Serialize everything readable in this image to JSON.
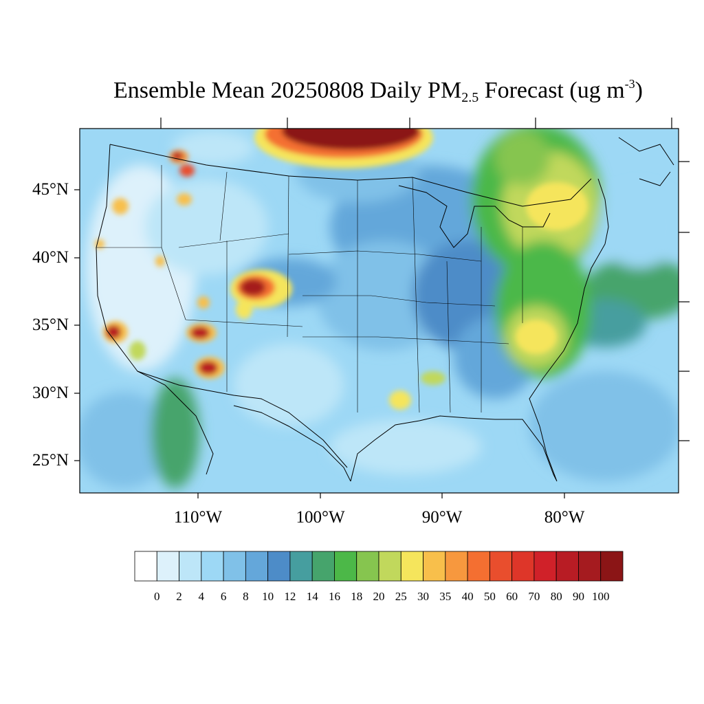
{
  "title": {
    "prefix": "Ensemble Mean 20250808 Daily PM",
    "subscript": "2.5",
    "middle": " Forecast (ug m",
    "superscript": "-3",
    "suffix": ")"
  },
  "map": {
    "projection": "lambert-conformal",
    "region": "Contiguous United States",
    "lat_labels": [
      "45°N",
      "40°N",
      "35°N",
      "30°N",
      "25°N"
    ],
    "lon_labels": [
      "110°W",
      "100°W",
      "90°W",
      "80°W"
    ],
    "background_level_ugm3": 6,
    "hotspots": [
      {
        "name": "southern-canada-smoke-plume",
        "peak_ugm3": 100
      },
      {
        "name": "colorado-wildfire",
        "peak_ugm3": 100
      },
      {
        "name": "northern-arizona-fire",
        "peak_ugm3": 90
      },
      {
        "name": "southern-arizona-fire",
        "peak_ugm3": 90
      },
      {
        "name": "southern-california-fire",
        "peak_ugm3": 90
      },
      {
        "name": "idaho-montana-fires",
        "peak_ugm3": 80
      },
      {
        "name": "great-lakes-northeast-haze",
        "peak_ugm3": 30
      },
      {
        "name": "carolinas-haze",
        "peak_ugm3": 30
      },
      {
        "name": "louisiana-mississippi",
        "peak_ugm3": 35
      }
    ]
  },
  "colorbar": {
    "levels": [
      "0",
      "2",
      "4",
      "6",
      "8",
      "10",
      "12",
      "14",
      "16",
      "18",
      "20",
      "25",
      "30",
      "35",
      "40",
      "50",
      "60",
      "70",
      "80",
      "90",
      "100"
    ],
    "colors": [
      "#ffffff",
      "#ddf1fb",
      "#bde6f8",
      "#9dd8f5",
      "#80c1e8",
      "#64a7da",
      "#4d8cc8",
      "#469e9f",
      "#46a46c",
      "#4cb848",
      "#86c54f",
      "#c1d85c",
      "#f5e55c",
      "#f8bf4b",
      "#f7983e",
      "#f46f31",
      "#e94e2d",
      "#de3629",
      "#d02129",
      "#b81c24",
      "#a51b1f",
      "#8b1516"
    ]
  }
}
